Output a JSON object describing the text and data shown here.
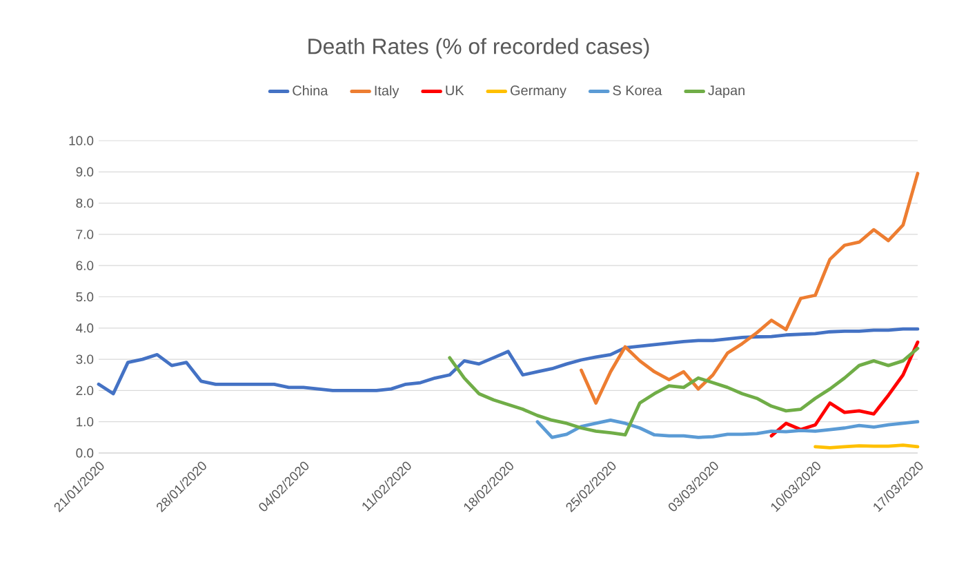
{
  "chart_data": {
    "type": "line",
    "title": "Death Rates (% of recorded cases)",
    "x": [
      "2020-01-21",
      "2020-01-22",
      "2020-01-23",
      "2020-01-24",
      "2020-01-25",
      "2020-01-26",
      "2020-01-27",
      "2020-01-28",
      "2020-01-29",
      "2020-01-30",
      "2020-01-31",
      "2020-02-01",
      "2020-02-02",
      "2020-02-03",
      "2020-02-04",
      "2020-02-05",
      "2020-02-06",
      "2020-02-07",
      "2020-02-08",
      "2020-02-09",
      "2020-02-10",
      "2020-02-11",
      "2020-02-12",
      "2020-02-13",
      "2020-02-14",
      "2020-02-15",
      "2020-02-16",
      "2020-02-17",
      "2020-02-18",
      "2020-02-19",
      "2020-02-20",
      "2020-02-21",
      "2020-02-22",
      "2020-02-23",
      "2020-02-24",
      "2020-02-25",
      "2020-02-26",
      "2020-02-27",
      "2020-02-28",
      "2020-02-29",
      "2020-03-01",
      "2020-03-02",
      "2020-03-03",
      "2020-03-04",
      "2020-03-05",
      "2020-03-06",
      "2020-03-07",
      "2020-03-08",
      "2020-03-09",
      "2020-03-10",
      "2020-03-11",
      "2020-03-12",
      "2020-03-13",
      "2020-03-14",
      "2020-03-15",
      "2020-03-16",
      "2020-03-17"
    ],
    "series": [
      {
        "name": "China",
        "color": "#4472c4",
        "values": [
          2.2,
          1.9,
          2.9,
          3.0,
          3.15,
          2.8,
          2.9,
          2.3,
          2.2,
          2.2,
          2.2,
          2.2,
          2.2,
          2.1,
          2.1,
          2.05,
          2.0,
          2.0,
          2.0,
          2.0,
          2.05,
          2.2,
          2.25,
          2.4,
          2.5,
          2.95,
          2.85,
          3.05,
          3.25,
          2.5,
          2.6,
          2.7,
          2.85,
          2.98,
          3.07,
          3.15,
          3.37,
          3.42,
          3.47,
          3.52,
          3.57,
          3.6,
          3.6,
          3.65,
          3.7,
          3.72,
          3.73,
          3.78,
          3.8,
          3.82,
          3.88,
          3.9,
          3.9,
          3.93,
          3.93,
          3.97,
          3.97
        ]
      },
      {
        "name": "Italy",
        "color": "#ed7d31",
        "values": [
          null,
          null,
          null,
          null,
          null,
          null,
          null,
          null,
          null,
          null,
          null,
          null,
          null,
          null,
          null,
          null,
          null,
          null,
          null,
          null,
          null,
          null,
          null,
          null,
          null,
          null,
          null,
          null,
          null,
          null,
          null,
          null,
          null,
          2.65,
          1.6,
          2.6,
          3.4,
          2.95,
          2.6,
          2.35,
          2.6,
          2.05,
          2.5,
          3.2,
          3.5,
          3.85,
          4.25,
          3.95,
          4.95,
          5.05,
          6.2,
          6.65,
          6.75,
          7.15,
          6.8,
          7.3,
          8.95
        ]
      },
      {
        "name": "UK",
        "color": "#ff0000",
        "values": [
          null,
          null,
          null,
          null,
          null,
          null,
          null,
          null,
          null,
          null,
          null,
          null,
          null,
          null,
          null,
          null,
          null,
          null,
          null,
          null,
          null,
          null,
          null,
          null,
          null,
          null,
          null,
          null,
          null,
          null,
          null,
          null,
          null,
          null,
          null,
          null,
          null,
          null,
          null,
          null,
          null,
          null,
          null,
          null,
          null,
          null,
          0.55,
          0.95,
          0.75,
          0.9,
          1.6,
          1.3,
          1.35,
          1.25,
          1.85,
          2.5,
          3.55
        ]
      },
      {
        "name": "Germany",
        "color": "#ffc000",
        "values": [
          null,
          null,
          null,
          null,
          null,
          null,
          null,
          null,
          null,
          null,
          null,
          null,
          null,
          null,
          null,
          null,
          null,
          null,
          null,
          null,
          null,
          null,
          null,
          null,
          null,
          null,
          null,
          null,
          null,
          null,
          null,
          null,
          null,
          null,
          null,
          null,
          null,
          null,
          null,
          null,
          null,
          null,
          null,
          null,
          null,
          null,
          null,
          null,
          null,
          0.2,
          0.17,
          0.2,
          0.23,
          0.22,
          0.22,
          0.25,
          0.2
        ]
      },
      {
        "name": "S Korea",
        "color": "#5b9bd5",
        "values": [
          null,
          null,
          null,
          null,
          null,
          null,
          null,
          null,
          null,
          null,
          null,
          null,
          null,
          null,
          null,
          null,
          null,
          null,
          null,
          null,
          null,
          null,
          null,
          null,
          null,
          null,
          null,
          null,
          null,
          null,
          1.0,
          0.5,
          0.6,
          0.85,
          0.95,
          1.05,
          0.95,
          0.8,
          0.58,
          0.55,
          0.55,
          0.5,
          0.52,
          0.6,
          0.6,
          0.62,
          0.7,
          0.68,
          0.72,
          0.7,
          0.75,
          0.8,
          0.88,
          0.83,
          0.9,
          0.95,
          1.0
        ]
      },
      {
        "name": "Japan",
        "color": "#70ad47",
        "values": [
          null,
          null,
          null,
          null,
          null,
          null,
          null,
          null,
          null,
          null,
          null,
          null,
          null,
          null,
          null,
          null,
          null,
          null,
          null,
          null,
          null,
          null,
          null,
          null,
          3.05,
          2.4,
          1.9,
          1.7,
          1.55,
          1.4,
          1.2,
          1.05,
          0.95,
          0.8,
          0.7,
          0.65,
          0.58,
          1.6,
          1.9,
          2.15,
          2.1,
          2.4,
          2.25,
          2.1,
          1.9,
          1.75,
          1.5,
          1.35,
          1.4,
          1.75,
          2.05,
          2.4,
          2.8,
          2.95,
          2.8,
          2.95,
          3.35
        ]
      }
    ],
    "xlim": [
      "2020-01-21",
      "2020-03-17"
    ],
    "xticks": [
      {
        "value": "2020-01-21",
        "label": "21/01/2020"
      },
      {
        "value": "2020-01-28",
        "label": "28/01/2020"
      },
      {
        "value": "2020-02-04",
        "label": "04/02/2020"
      },
      {
        "value": "2020-02-11",
        "label": "11/02/2020"
      },
      {
        "value": "2020-02-18",
        "label": "18/02/2020"
      },
      {
        "value": "2020-02-25",
        "label": "25/02/2020"
      },
      {
        "value": "2020-03-03",
        "label": "03/03/2020"
      },
      {
        "value": "2020-03-10",
        "label": "10/03/2020"
      },
      {
        "value": "2020-03-17",
        "label": "17/03/2020"
      }
    ],
    "ylim": [
      0,
      10
    ],
    "yticks": [
      {
        "value": 0,
        "label": "0.0"
      },
      {
        "value": 1,
        "label": "1.0"
      },
      {
        "value": 2,
        "label": "2.0"
      },
      {
        "value": 3,
        "label": "3.0"
      },
      {
        "value": 4,
        "label": "4.0"
      },
      {
        "value": 5,
        "label": "5.0"
      },
      {
        "value": 6,
        "label": "6.0"
      },
      {
        "value": 7,
        "label": "7.0"
      },
      {
        "value": 8,
        "label": "8.0"
      },
      {
        "value": 9,
        "label": "9.0"
      },
      {
        "value": 10,
        "label": "10.0"
      }
    ],
    "grid": "y",
    "legend": "top",
    "marker": "none",
    "line_style": "solid"
  }
}
